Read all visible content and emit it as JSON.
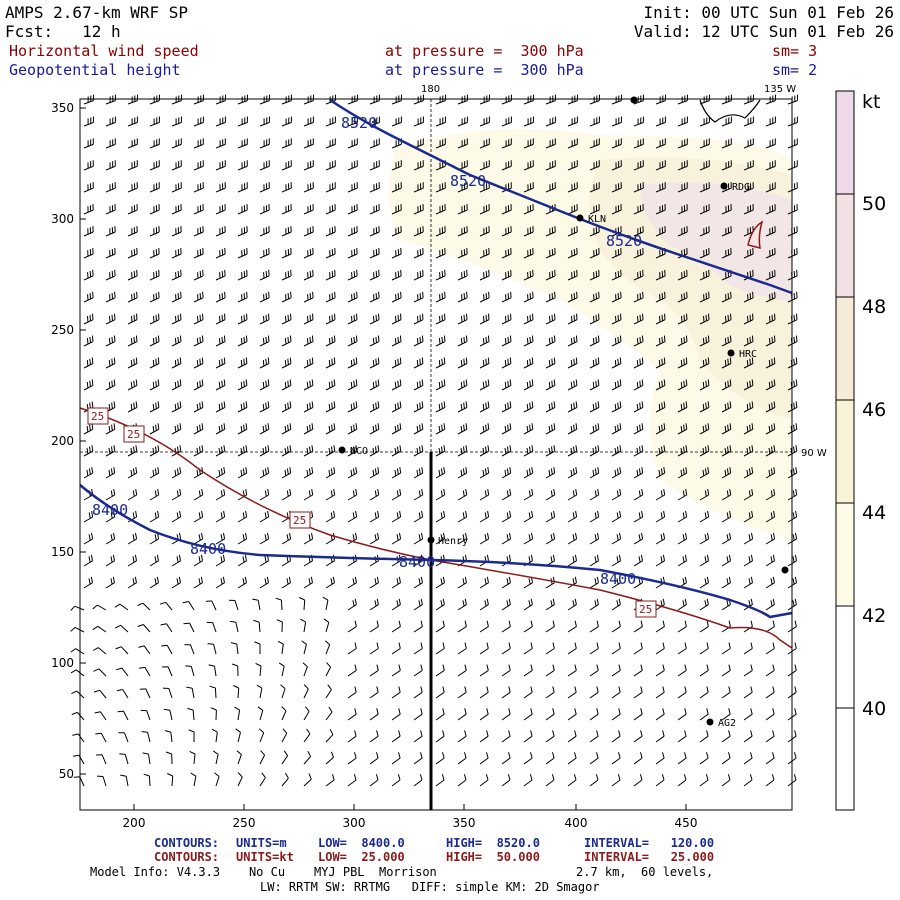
{
  "header": {
    "model": "AMPS 2.67-km WRF SP",
    "fcst": "Fcst:   12 h",
    "init": "Init: 00 UTC Sun 01 Feb 26",
    "valid": "Valid: 12 UTC Sun 01 Feb 26",
    "field1": "Horizontal wind speed",
    "field2": "Geopotential height",
    "pressure1": "at pressure =  300 hPa",
    "pressure2": "at pressure =  300 hPa",
    "sm1": "sm= 3",
    "sm2": "sm= 2"
  },
  "map": {
    "x_ticks": [
      "200",
      "250",
      "300",
      "350",
      "400",
      "450"
    ],
    "y_ticks": [
      "50",
      "100",
      "150",
      "200",
      "250",
      "300",
      "350"
    ],
    "meridian_labels": [
      "180",
      "135 W",
      "90 W"
    ],
    "stations": [
      "RDG",
      "KLN",
      "HRC",
      "NCO",
      "Henry",
      "AG2"
    ],
    "height_contour_labels": [
      "8520",
      "8520",
      "8520",
      "8400",
      "8400",
      "8400",
      "8400"
    ],
    "speed_contour_labels": [
      "25",
      "25",
      "25",
      "25"
    ]
  },
  "colorbar": {
    "unit": "kt",
    "levels": [
      "50",
      "48",
      "46",
      "44",
      "42",
      "40"
    ],
    "colors": [
      "#ffffff",
      "#fdfbe6",
      "#f8f3d6",
      "#f5ebd8",
      "#f1e0e4",
      "#eed9e8"
    ]
  },
  "footer": {
    "c1_label": "CONTOURS:",
    "c1_units": "UNITS=m",
    "c1_low": "LOW=  8400.0",
    "c1_high": "HIGH=  8520.0",
    "c1_int": "INTERVAL=   120.00",
    "c2_label": "CONTOURS:",
    "c2_units": "UNITS=kt",
    "c2_low": "LOW=  25.000",
    "c2_high": "HIGH=  50.000",
    "c2_int": "INTERVAL=   25.000",
    "model_info": "Model Info: V4.3.3    No Cu    MYJ PBL  Morrison",
    "levels": "2.7 km,  60 levels,",
    "physics": "LW: RRTM SW: RRTMG   DIFF: simple KM: 2D Smagor"
  },
  "colors": {
    "height_contour": "#1a2a8f",
    "speed_contour": "#8b1a1a"
  }
}
